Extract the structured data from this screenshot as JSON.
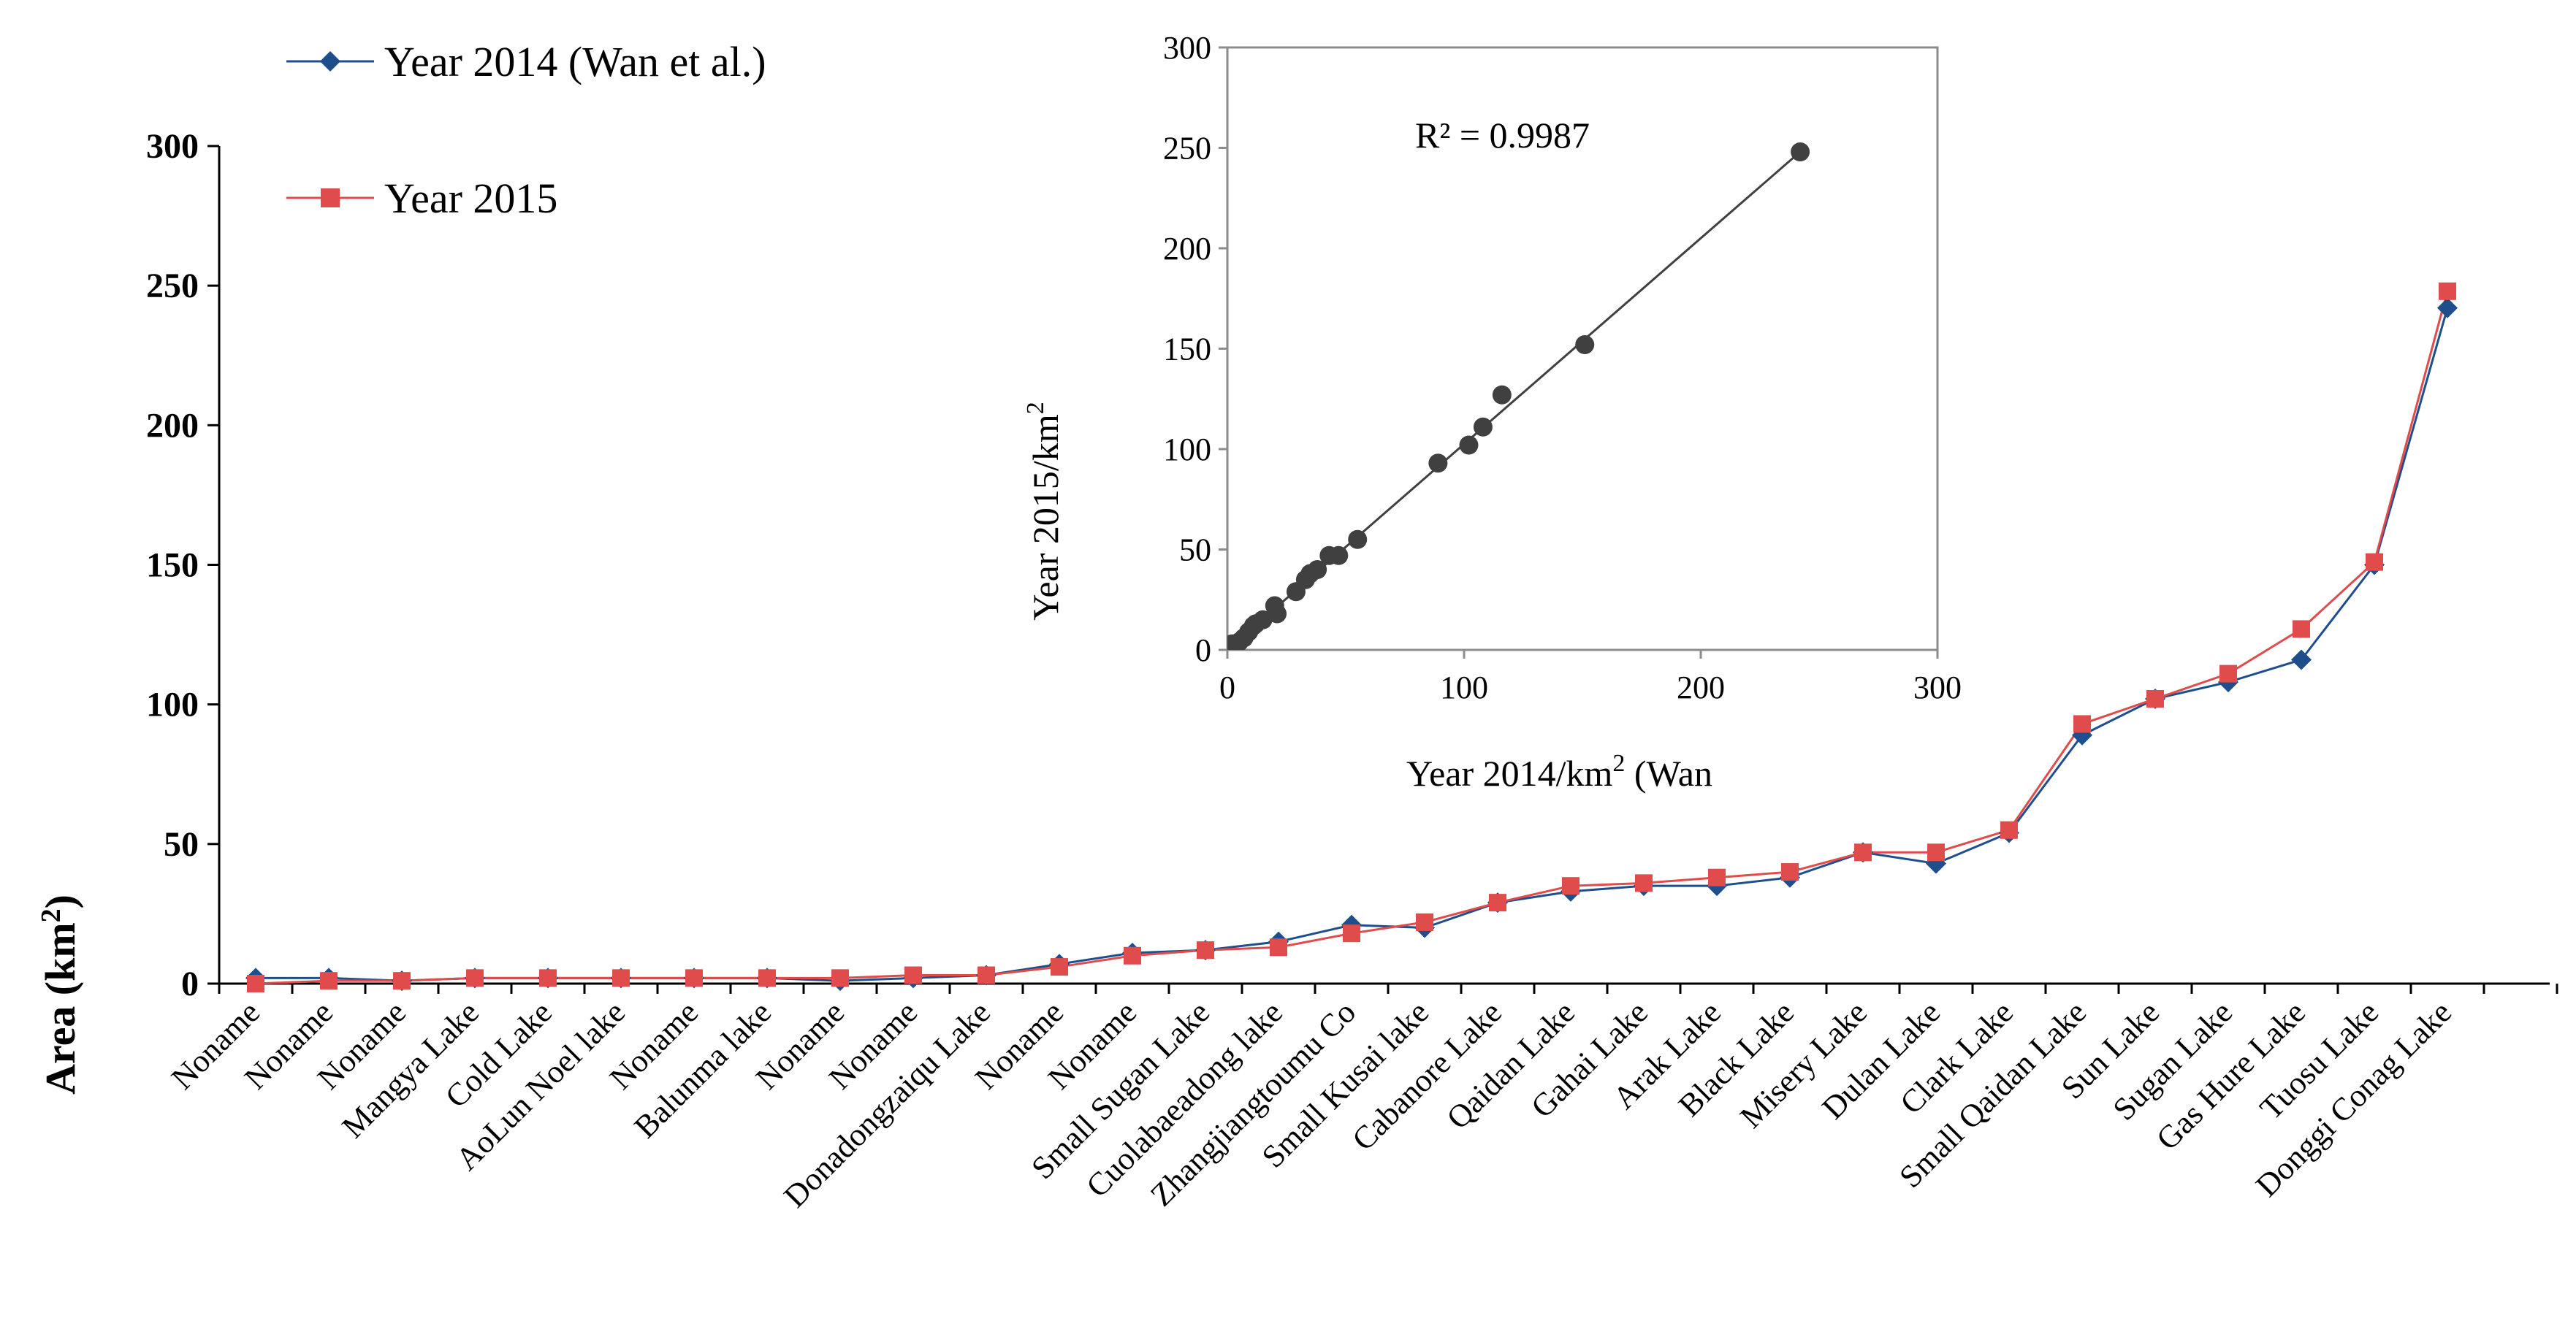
{
  "chart_data": [
    {
      "type": "line",
      "title": "",
      "ylabel": "Area (km²)",
      "ylabel_main": "Area (km",
      "ylabel_sup": "2",
      "ylabel_end": ")",
      "xlabel": "",
      "ylim": [
        0,
        300
      ],
      "yticks": [
        "0",
        "50",
        "100",
        "150",
        "200",
        "250",
        "300"
      ],
      "grid": false,
      "legend_position": "top-left",
      "categories": [
        "Noname",
        "Noname",
        "Noname",
        "Mangya Lake",
        "Cold Lake",
        "AoLun Noel lake",
        "Noname",
        "Balunma lake",
        "Noname",
        "Noname",
        "Donadongzaiqu Lake",
        "Noname",
        "Noname",
        "Small Sugan Lake",
        "Cuolabaeadong lake",
        "Zhangjiangtoumu Co",
        "Small Kusai lake",
        "Cabanore Lake",
        "Qaidan Lake",
        "Gahai Lake",
        "Arak Lake",
        "Black Lake",
        "Misery Lake",
        "Dulan Lake",
        "Clark Lake",
        "Small Qaidan Lake",
        "Sun Lake",
        "Sugan Lake",
        "Gas Hure Lake",
        "Tuosu Lake",
        "Donggi Conag Lake"
      ],
      "series": [
        {
          "name": "Year 2014 (Wan et al.)",
          "color": "#1f4e8c",
          "marker": "diamond",
          "values": [
            2,
            2,
            1,
            2,
            2,
            2,
            2,
            2,
            1,
            2,
            3,
            7,
            11,
            12,
            15,
            21,
            20,
            29,
            33,
            35,
            35,
            38,
            47,
            43,
            54,
            89,
            102,
            108,
            116,
            150,
            242
          ]
        },
        {
          "name": "Year 2015",
          "color": "#e04b4b",
          "marker": "square",
          "values": [
            0,
            1,
            1,
            2,
            2,
            2,
            2,
            2,
            2,
            3,
            3,
            6,
            10,
            12,
            13,
            18,
            22,
            29,
            35,
            36,
            38,
            40,
            47,
            47,
            55,
            93,
            102,
            111,
            127,
            151,
            248
          ]
        }
      ]
    },
    {
      "type": "scatter",
      "title": "",
      "annotation": "R² = 0.9987",
      "xlabel": "Year 2014/km² (Wan",
      "xlabel_parts": [
        "Year 2014/km",
        "2",
        " (Wan"
      ],
      "ylabel": "Year 2015/km²",
      "ylabel_parts": [
        "Year 2015/km",
        "2"
      ],
      "xlim": [
        0,
        300
      ],
      "ylim": [
        0,
        300
      ],
      "xticks": [
        "0",
        "100",
        "200",
        "300"
      ],
      "yticks": [
        "0",
        "50",
        "100",
        "150",
        "200",
        "250",
        "300"
      ],
      "trendline": {
        "slope": 1.025,
        "intercept": 0,
        "x_range": [
          0,
          242
        ]
      },
      "points": [
        [
          0,
          0
        ],
        [
          2,
          2
        ],
        [
          2,
          3
        ],
        [
          5,
          4
        ],
        [
          7,
          6
        ],
        [
          9,
          9
        ],
        [
          11,
          12
        ],
        [
          12,
          13
        ],
        [
          15,
          15
        ],
        [
          20,
          22
        ],
        [
          21,
          18
        ],
        [
          29,
          29
        ],
        [
          33,
          35
        ],
        [
          35,
          38
        ],
        [
          38,
          40
        ],
        [
          43,
          47
        ],
        [
          47,
          47
        ],
        [
          55,
          55
        ],
        [
          89,
          93
        ],
        [
          102,
          102
        ],
        [
          108,
          111
        ],
        [
          116,
          127
        ],
        [
          151,
          152
        ],
        [
          242,
          248
        ]
      ]
    }
  ]
}
